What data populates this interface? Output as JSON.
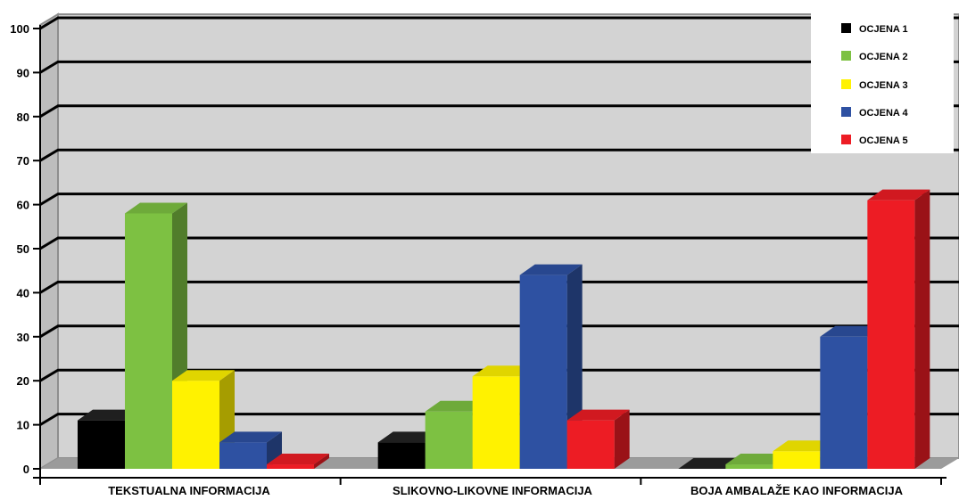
{
  "chart_data": {
    "type": "bar",
    "title": "",
    "xlabel": "",
    "ylabel": "",
    "ylim": [
      0,
      100
    ],
    "yticks": [
      0,
      10,
      20,
      30,
      40,
      50,
      60,
      70,
      80,
      90,
      100
    ],
    "grid": true,
    "three_d": true,
    "legend_position": "top-right",
    "categories": [
      "TEKSTUALNA INFORMACIJA",
      "SLIKOVNO-LIKOVNE INFORMACIJA",
      "BOJA AMBALAŽE KAO INFORMACIJA"
    ],
    "series": [
      {
        "name": "OCJENA 1",
        "color": "#000000",
        "values": [
          11,
          6,
          0
        ]
      },
      {
        "name": "OCJENA 2",
        "color": "#7dc142",
        "values": [
          58,
          13,
          1
        ]
      },
      {
        "name": "OCJENA 3",
        "color": "#fff200",
        "values": [
          20,
          21,
          4
        ]
      },
      {
        "name": "OCJENA 4",
        "color": "#2e51a2",
        "values": [
          6,
          44,
          30
        ]
      },
      {
        "name": "OCJENA 5",
        "color": "#ed1c24",
        "values": [
          1,
          11,
          61
        ]
      }
    ]
  },
  "colors": {
    "wall": "#d3d3d3",
    "floor": "#9b9b9b",
    "gridline": "#000000"
  }
}
